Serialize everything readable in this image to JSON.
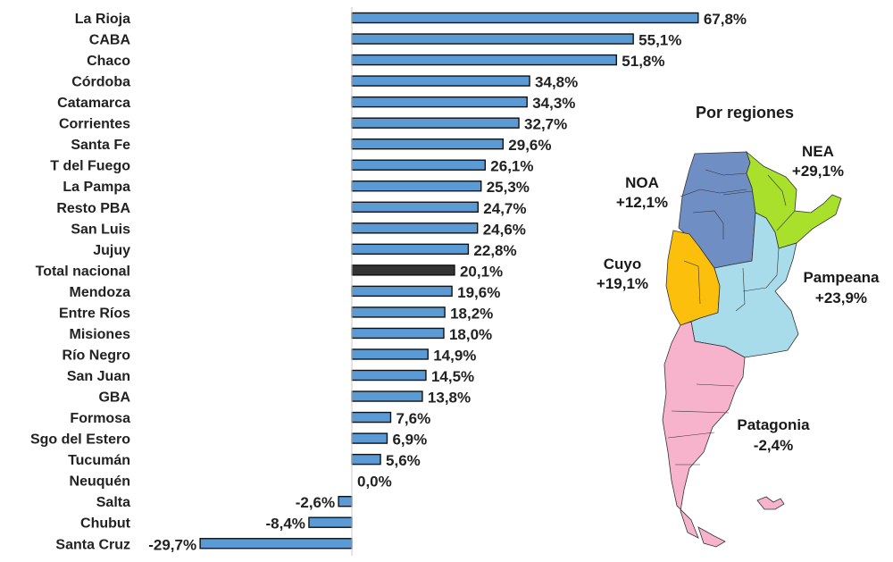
{
  "chart_data": {
    "type": "bar",
    "orientation": "horizontal",
    "categories": [
      "La Rioja",
      "CABA",
      "Chaco",
      "Córdoba",
      "Catamarca",
      "Corrientes",
      "Santa Fe",
      "T del Fuego",
      "La Pampa",
      "Resto PBA",
      "San Luis",
      "Jujuy",
      "Total nacional",
      "Mendoza",
      "Entre Ríos",
      "Misiones",
      "Río Negro",
      "San Juan",
      "GBA",
      "Formosa",
      "Sgo del Estero",
      "Tucumán",
      "Neuquén",
      "Salta",
      "Chubut",
      "Santa Cruz"
    ],
    "values": [
      67.8,
      55.1,
      51.8,
      34.8,
      34.3,
      32.7,
      29.6,
      26.1,
      25.3,
      24.7,
      24.6,
      22.8,
      20.1,
      19.6,
      18.2,
      18.0,
      14.9,
      14.5,
      13.8,
      7.6,
      6.9,
      5.6,
      0.0,
      -2.6,
      -8.4,
      -29.7
    ],
    "value_labels": [
      "67,8%",
      "55,1%",
      "51,8%",
      "34,8%",
      "34,3%",
      "32,7%",
      "29,6%",
      "26,1%",
      "25,3%",
      "24,7%",
      "24,6%",
      "22,8%",
      "20,1%",
      "19,6%",
      "18,2%",
      "18,0%",
      "14,9%",
      "14,5%",
      "13,8%",
      "7,6%",
      "6,9%",
      "5,6%",
      "0,0%",
      "-2,6%",
      "-8,4%",
      "-29,7%"
    ],
    "highlight_category": "Total nacional",
    "xlim": [
      -30,
      70
    ],
    "colors": {
      "bar": "#5b9bd5",
      "highlight": "#333333",
      "outline": "#111111"
    }
  },
  "regions": {
    "title": "Por regiones",
    "items": [
      {
        "name": "NEA",
        "value": "+29,1%",
        "color": "#a8e02c"
      },
      {
        "name": "NOA",
        "value": "+12,1%",
        "color": "#6f8fc4"
      },
      {
        "name": "Cuyo",
        "value": "+19,1%",
        "color": "#fbbf0c"
      },
      {
        "name": "Pampeana",
        "value": "+23,9%",
        "color": "#a9dcea"
      },
      {
        "name": "Patagonia",
        "value": "-2,4%",
        "color": "#f7b3cc"
      }
    ]
  }
}
